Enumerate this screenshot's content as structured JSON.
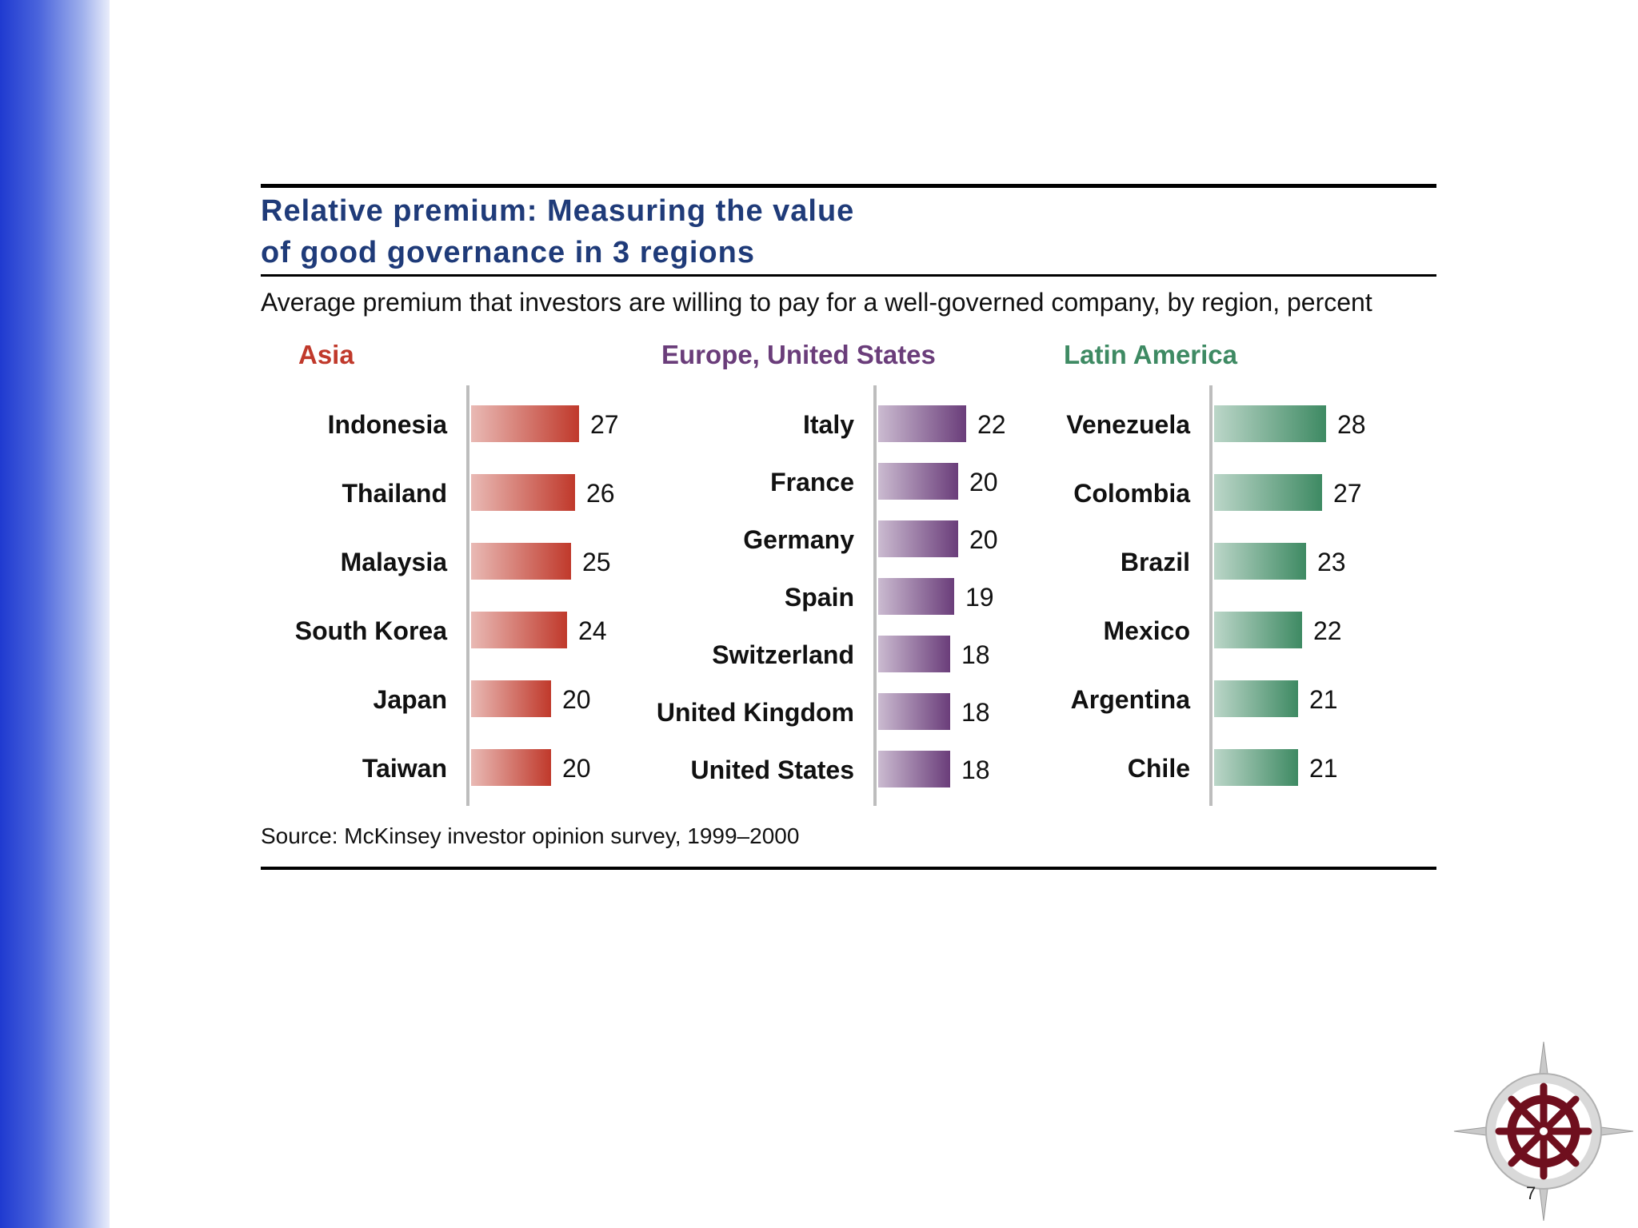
{
  "slide": {
    "number": "7"
  },
  "chart_data": {
    "type": "bar",
    "orientation": "horizontal",
    "title_lines": [
      "Relative premium: Measuring the value",
      "of good governance in 3 regions"
    ],
    "subtitle": "Average premium that investors are willing to pay for a well-governed company, by region, percent",
    "source": "Source: McKinsey investor opinion survey, 1999–2000",
    "unit": "percent",
    "panels": [
      {
        "name": "Asia",
        "color": "#c0392b",
        "categories": [
          "Indonesia",
          "Thailand",
          "Malaysia",
          "South Korea",
          "Japan",
          "Taiwan"
        ],
        "values": [
          27,
          26,
          25,
          24,
          20,
          20
        ]
      },
      {
        "name": "Europe, United States",
        "color": "#6a3d7a",
        "categories": [
          "Italy",
          "France",
          "Germany",
          "Spain",
          "Switzerland",
          "United Kingdom",
          "United States"
        ],
        "values": [
          22,
          20,
          20,
          19,
          18,
          18,
          18
        ]
      },
      {
        "name": "Latin America",
        "color": "#3e8a63",
        "categories": [
          "Venezuela",
          "Colombia",
          "Brazil",
          "Mexico",
          "Argentina",
          "Chile"
        ],
        "values": [
          28,
          27,
          23,
          22,
          21,
          21
        ]
      }
    ]
  }
}
